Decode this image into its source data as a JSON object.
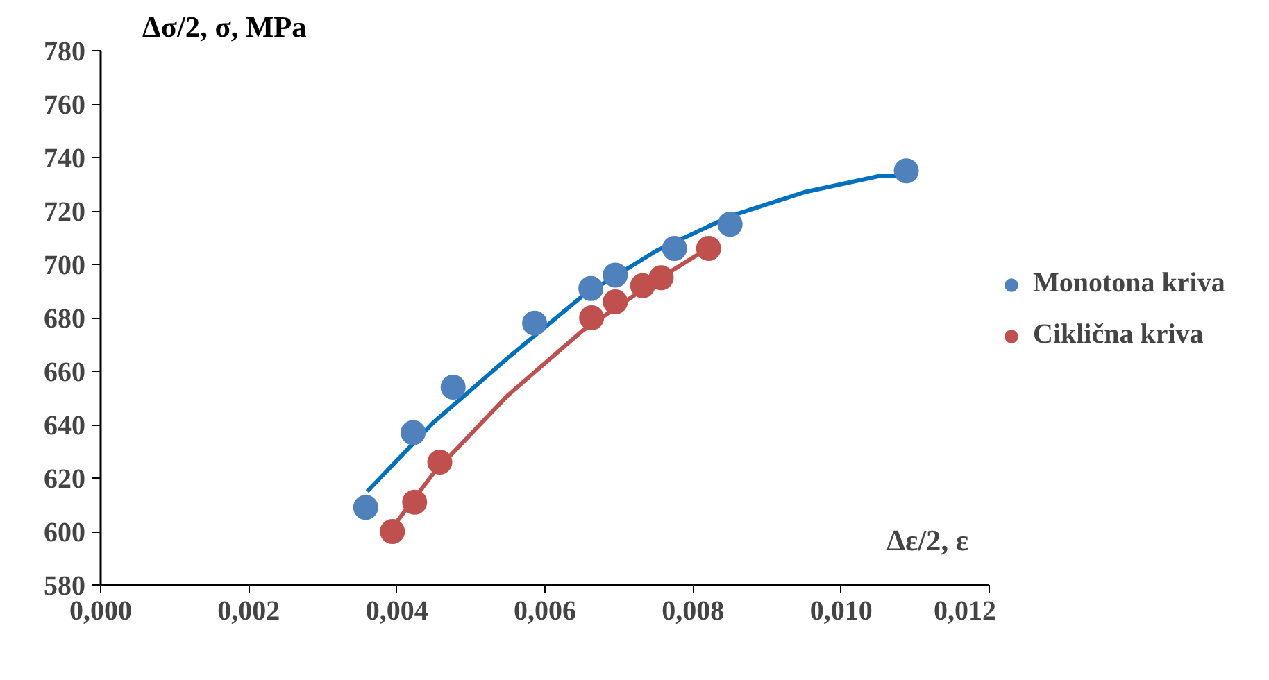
{
  "chart_data": {
    "type": "scatter",
    "xlabel": "Δε/2, ε",
    "ylabel": "Δσ/2, σ, MPa",
    "xlim": [
      0,
      0.012
    ],
    "ylim": [
      580,
      780
    ],
    "xticks": [
      {
        "value": 0,
        "label": "0,000"
      },
      {
        "value": 0.002,
        "label": "0,002"
      },
      {
        "value": 0.004,
        "label": "0,004"
      },
      {
        "value": 0.006,
        "label": "0,006"
      },
      {
        "value": 0.008,
        "label": "0,008"
      },
      {
        "value": 0.01,
        "label": "0,010"
      },
      {
        "value": 0.012,
        "label": "0,012"
      }
    ],
    "yticks": [
      580,
      600,
      620,
      640,
      660,
      680,
      700,
      720,
      740,
      760,
      780
    ],
    "grid": false,
    "legend": "right",
    "marker": "circle",
    "series": [
      {
        "type": "line",
        "marker": "none",
        "color": "#0070c0",
        "x": [
          0.0036,
          0.0045,
          0.0055,
          0.0065,
          0.0075,
          0.0085,
          0.0095,
          0.0105,
          0.0109
        ],
        "values": [
          615,
          641,
          665,
          688,
          705,
          718,
          727,
          733,
          733
        ]
      },
      {
        "type": "line",
        "marker": "none",
        "color": "#c0504d",
        "x": [
          0.0039,
          0.0045,
          0.0055,
          0.0065,
          0.0075,
          0.0082
        ],
        "values": [
          600,
          622,
          651,
          675,
          694,
          706
        ]
      },
      {
        "name": "Monotona kriva",
        "color": "#4f81bd",
        "x": [
          0.00358,
          0.00422,
          0.00476,
          0.00586,
          0.00662,
          0.00695,
          0.00775,
          0.0085,
          0.01088
        ],
        "values": [
          609,
          637,
          654,
          678,
          691,
          696,
          706,
          715,
          735
        ]
      },
      {
        "name": "Ciklična kriva",
        "color": "#c0504d",
        "x": [
          0.00394,
          0.00424,
          0.00458,
          0.00663,
          0.00695,
          0.00732,
          0.00757,
          0.00821
        ],
        "values": [
          600,
          611,
          626,
          680,
          686,
          692,
          695,
          706
        ]
      }
    ]
  }
}
